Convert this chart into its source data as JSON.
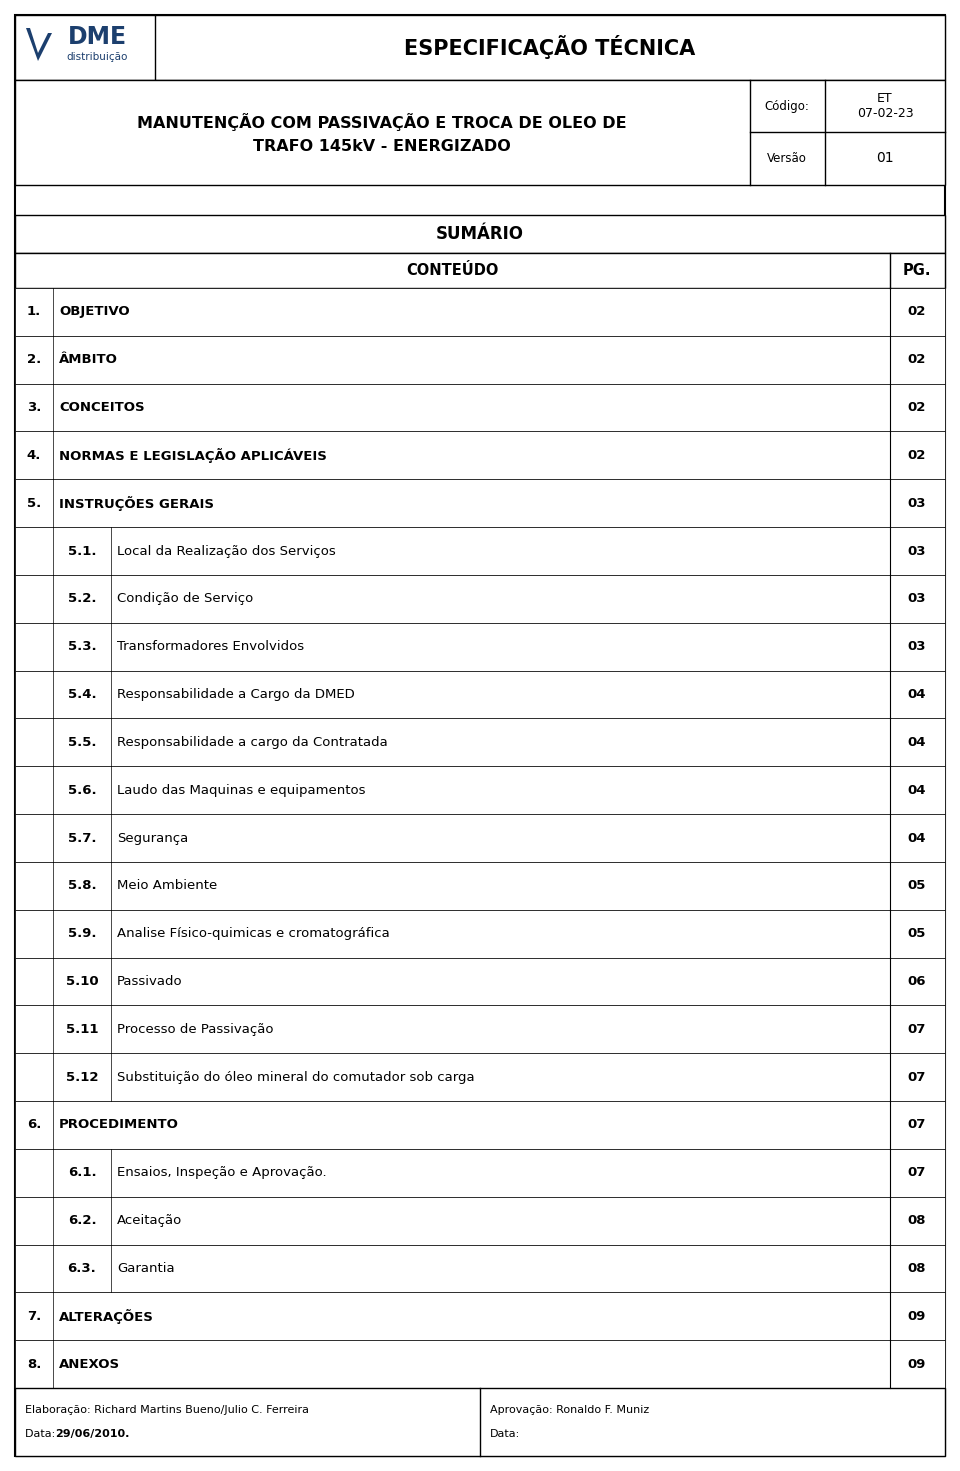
{
  "title_header": "ESPECIFICAÇÃO TÉCNICA",
  "doc_title_line1": "MANUTENÇÃO COM PASSIVAÇÃO E TROCA DE OLEO DE",
  "doc_title_line2": "TRAFO 145kV - ENERGIZADO",
  "codigo_label": "Código:",
  "codigo_value": "ET\n07-02-23",
  "versao_label": "Versão",
  "versao_value": "01",
  "sumario_title": "SUMÁRIO",
  "col1_header": "CONTEÚDO",
  "col2_header": "PG.",
  "rows": [
    {
      "num": "1.",
      "sub": "",
      "text": "OBJETIVO",
      "page": "02",
      "bold": true
    },
    {
      "num": "2.",
      "sub": "",
      "text": "ÂMBITO",
      "page": "02",
      "bold": true
    },
    {
      "num": "3.",
      "sub": "",
      "text": "CONCEITOS",
      "page": "02",
      "bold": true
    },
    {
      "num": "4.",
      "sub": "",
      "text": "NORMAS E LEGISLAÇÃO APLICÁVEIS",
      "page": "02",
      "bold": true
    },
    {
      "num": "5.",
      "sub": "",
      "text": "INSTRUÇÕES GERAIS",
      "page": "03",
      "bold": true
    },
    {
      "num": "",
      "sub": "5.1.",
      "text": "Local da Realização dos Serviços",
      "page": "03",
      "bold": false
    },
    {
      "num": "",
      "sub": "5.2.",
      "text": "Condição de Serviço",
      "page": "03",
      "bold": false
    },
    {
      "num": "",
      "sub": "5.3.",
      "text": "Transformadores Envolvidos",
      "page": "03",
      "bold": false
    },
    {
      "num": "",
      "sub": "5.4.",
      "text": "Responsabilidade a Cargo da DMED",
      "page": "04",
      "bold": false
    },
    {
      "num": "",
      "sub": "5.5.",
      "text": "Responsabilidade a cargo da Contratada",
      "page": "04",
      "bold": false
    },
    {
      "num": "",
      "sub": "5.6.",
      "text": "Laudo das Maquinas e equipamentos",
      "page": "04",
      "bold": false
    },
    {
      "num": "",
      "sub": "5.7.",
      "text": "Segurança",
      "page": "04",
      "bold": false
    },
    {
      "num": "",
      "sub": "5.8.",
      "text": "Meio Ambiente",
      "page": "05",
      "bold": false
    },
    {
      "num": "",
      "sub": "5.9.",
      "text": "Analise Físico-quimicas e cromatográfica",
      "page": "05",
      "bold": false
    },
    {
      "num": "",
      "sub": "5.10",
      "text": "Passivado",
      "page": "06",
      "bold": false
    },
    {
      "num": "",
      "sub": "5.11",
      "text": "Processo de Passivação",
      "page": "07",
      "bold": false
    },
    {
      "num": "",
      "sub": "5.12",
      "text": "Substituição do óleo mineral do comutador sob carga",
      "page": "07",
      "bold": false
    },
    {
      "num": "6.",
      "sub": "",
      "text": "PROCEDIMENTO",
      "page": "07",
      "bold": true
    },
    {
      "num": "",
      "sub": "6.1.",
      "text": "Ensaios, Inspeção e Aprovação.",
      "page": "07",
      "bold": false
    },
    {
      "num": "",
      "sub": "6.2.",
      "text": "Aceitação",
      "page": "08",
      "bold": false
    },
    {
      "num": "",
      "sub": "6.3.",
      "text": "Garantia",
      "page": "08",
      "bold": false
    },
    {
      "num": "7.",
      "sub": "",
      "text": "ALTERAÇÕES",
      "page": "09",
      "bold": true
    },
    {
      "num": "8.",
      "sub": "",
      "text": "ANEXOS",
      "page": "09",
      "bold": true
    }
  ],
  "footer_left_line1": "Elaboração: Richard Martins Bueno/Julio C. Ferreira",
  "footer_left_line2_pre": "Data: ",
  "footer_left_line2_bold": "29/06/2010.",
  "footer_right_line1": "Aprovação: Ronaldo F. Muniz",
  "footer_right_line2": "Data:",
  "bg_color": "#ffffff"
}
